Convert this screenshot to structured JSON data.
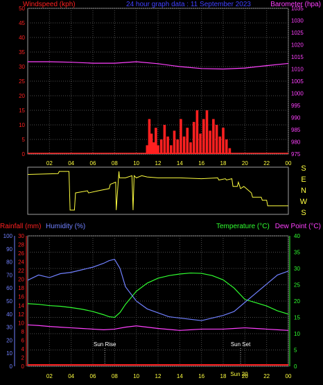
{
  "header": {
    "left_label": "Windspeed (kph)",
    "center_label": "24 hour graph data : 11 September 2023",
    "right_label": "Barometer (hpa)"
  },
  "lower_header": {
    "rainfall_label": "Rainfall (mm)",
    "humidity_label": "Humidity (%)",
    "temperature_label": "Temperature (°C)",
    "dewpoint_label": "Dew Point (°C)"
  },
  "direction_labels": [
    "S",
    "E",
    "N",
    "W",
    "S"
  ],
  "x_ticks": [
    "02",
    "04",
    "06",
    "08",
    "10",
    "12",
    "14",
    "16",
    "18",
    "20",
    "22",
    "00"
  ],
  "colors": {
    "windspeed": "#ff2020",
    "barometer": "#ff40ff",
    "humidity": "#7080ff",
    "temperature": "#30ff30",
    "dewpoint": "#ff40ff",
    "rainfall": "#ff2020",
    "direction": "#ffff40",
    "grid": "#505050",
    "title": "#4040ff"
  },
  "chart_data": [
    {
      "type": "area",
      "title": "24 hour graph data : 11 September 2023",
      "x_range": [
        0,
        24
      ],
      "series": [
        {
          "name": "Windspeed (kph)",
          "axis": "left",
          "ylim": [
            0,
            50
          ],
          "y_ticks": [
            0,
            5,
            10,
            15,
            20,
            25,
            30,
            35,
            40,
            45,
            50
          ],
          "x": [
            11.0,
            11.2,
            11.4,
            11.6,
            11.8,
            12.0,
            12.3,
            12.6,
            12.9,
            13.2,
            13.5,
            13.8,
            14.1,
            14.4,
            14.7,
            15.0,
            15.3,
            15.6,
            15.9,
            16.2,
            16.5,
            16.8,
            17.1,
            17.4,
            17.7,
            18.0,
            18.3,
            18.6
          ],
          "values": [
            3,
            12,
            7,
            4,
            9,
            3,
            5,
            10,
            6,
            3,
            8,
            5,
            12,
            6,
            9,
            4,
            11,
            15,
            7,
            12,
            15,
            8,
            12,
            10,
            6,
            9,
            5,
            2
          ]
        },
        {
          "name": "Barometer (hpa)",
          "axis": "right",
          "ylim": [
            975,
            1035
          ],
          "y_ticks": [
            975,
            980,
            985,
            990,
            995,
            1000,
            1005,
            1010,
            1015,
            1020,
            1025,
            1030,
            1035
          ],
          "x": [
            0,
            2,
            4,
            6,
            8,
            10,
            12,
            14,
            16,
            18,
            20,
            22,
            24
          ],
          "values": [
            1013.0,
            1013.0,
            1012.8,
            1012.4,
            1012.4,
            1013.0,
            1012.2,
            1011.0,
            1010.2,
            1010.0,
            1010.4,
            1011.4,
            1012.3
          ]
        }
      ]
    },
    {
      "type": "line",
      "title": "",
      "x_range": [
        0,
        24
      ],
      "series": [
        {
          "name": "Wind direction",
          "ylabels_order": [
            "S",
            "E",
            "N",
            "W",
            "S"
          ],
          "x": [
            0,
            2.8,
            2.9,
            3.8,
            3.9,
            4.3,
            4.4,
            5.5,
            5.6,
            6.5,
            7.5,
            7.6,
            8.1,
            8.15,
            8.4,
            8.45,
            9.0,
            9.6,
            9.7,
            9.8,
            10.0,
            10.5,
            11.0,
            12.0,
            14.0,
            16.0,
            17.5,
            17.6,
            18.2,
            18.3,
            18.8,
            18.9,
            19.3,
            19.4,
            19.6,
            19.9,
            20.0,
            20.6,
            20.7,
            21.5,
            21.6,
            22.0,
            22.1,
            24.0
          ],
          "values": [
            0.12,
            0.1,
            0.05,
            0.05,
            0.95,
            0.95,
            0.55,
            0.5,
            0.55,
            0.5,
            0.45,
            0.35,
            0.3,
            0.95,
            0.05,
            0.2,
            0.2,
            0.15,
            0.95,
            0.15,
            0.2,
            0.15,
            0.18,
            0.2,
            0.2,
            0.22,
            0.2,
            0.25,
            0.22,
            0.25,
            0.22,
            0.4,
            0.4,
            0.3,
            0.45,
            0.4,
            0.42,
            0.55,
            0.65,
            0.65,
            0.72,
            0.72,
            0.85,
            0.85
          ]
        }
      ]
    },
    {
      "type": "line",
      "title": "",
      "x_range": [
        0,
        24
      ],
      "series": [
        {
          "name": "Humidity (%)",
          "axis": "left",
          "ylim": [
            0,
            100
          ],
          "y_ticks": [
            0,
            10,
            20,
            30,
            40,
            50,
            60,
            70,
            80,
            90,
            100
          ],
          "x": [
            0,
            1,
            2,
            3,
            4,
            5,
            6,
            7,
            7.5,
            8.0,
            8.5,
            9.0,
            10.0,
            11.0,
            12.0,
            13.0,
            14.0,
            15.0,
            16.0,
            17.0,
            18.0,
            19.0,
            20.0,
            21.0,
            22.0,
            23.0,
            24.0
          ],
          "values": [
            66,
            70,
            68,
            71,
            72,
            74,
            76,
            79,
            81,
            82,
            75,
            61,
            50,
            44,
            41,
            38,
            37,
            36,
            35,
            37,
            39,
            42,
            49,
            56,
            63,
            70,
            73
          ]
        },
        {
          "name": "Temperature (°C)",
          "axis": "right",
          "ylim": [
            0,
            40
          ],
          "y_ticks": [
            0,
            5,
            10,
            15,
            20,
            25,
            30,
            35,
            40
          ],
          "x": [
            0,
            1,
            2,
            3,
            4,
            5,
            6,
            7,
            7.5,
            8.0,
            8.5,
            9.0,
            10.0,
            11.0,
            12.0,
            13.0,
            14.0,
            15.0,
            16.0,
            17.0,
            18.0,
            19.0,
            20.0,
            21.0,
            22.0,
            23.0,
            24.0
          ],
          "values": [
            19.2,
            19.0,
            18.6,
            18.4,
            18.0,
            17.5,
            16.8,
            15.8,
            15.2,
            15.0,
            16.5,
            19.0,
            23.0,
            25.5,
            27.0,
            27.8,
            28.3,
            28.6,
            28.5,
            27.8,
            26.5,
            24.0,
            20.5,
            19.5,
            18.5,
            17.0,
            16.0
          ]
        },
        {
          "name": "Dew Point (°C)",
          "axis": "right",
          "ylim": [
            0,
            40
          ],
          "x": [
            0,
            1,
            2,
            3,
            4,
            5,
            6,
            7,
            8,
            9,
            10,
            11,
            12,
            13,
            14,
            15,
            16,
            17,
            18,
            19,
            20,
            21,
            22,
            23,
            24
          ],
          "values": [
            12.7,
            12.5,
            12.2,
            12.0,
            11.8,
            11.6,
            11.4,
            11.2,
            11.4,
            12.0,
            12.4,
            12.0,
            11.6,
            11.3,
            11.0,
            11.2,
            11.4,
            11.4,
            11.4,
            11.6,
            11.8,
            11.6,
            11.4,
            11.2,
            11.0
          ]
        },
        {
          "name": "Rainfall (mm)",
          "axis": "left2",
          "ylim": [
            0,
            30
          ],
          "y_ticks": [
            0,
            2,
            4,
            6,
            8,
            10,
            12,
            14,
            16,
            18,
            20,
            22,
            24,
            26,
            28,
            30
          ],
          "x": [
            0,
            24
          ],
          "values": [
            0,
            0
          ]
        }
      ],
      "annotations": [
        {
          "label": "Sun Rise",
          "x": 7.1
        },
        {
          "label": "Sun Set",
          "x": 19.6
        }
      ],
      "bottom_labels": [
        "Sun 20",
        "00"
      ]
    }
  ]
}
